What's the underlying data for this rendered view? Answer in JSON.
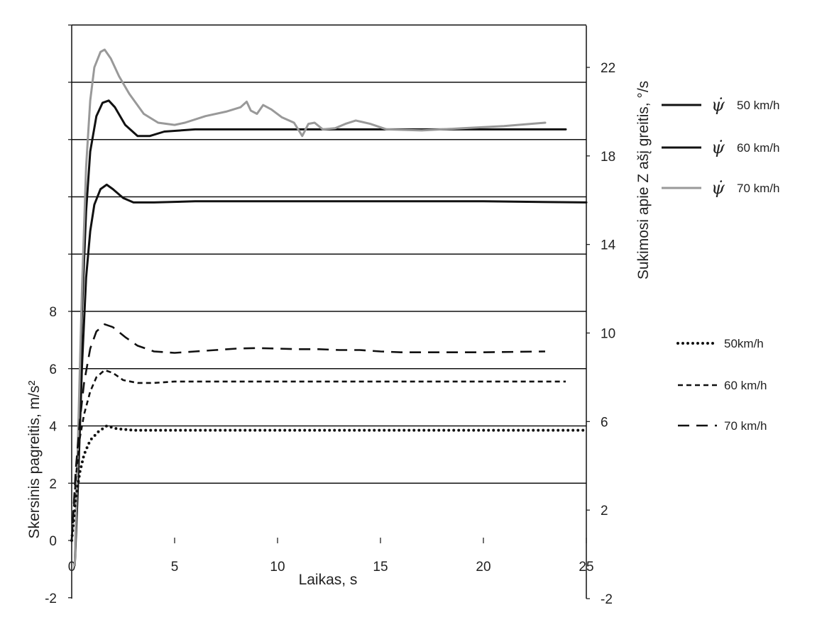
{
  "chart_data": {
    "type": "line",
    "title": "",
    "xlabel": "Laikas, s",
    "ylabel_left": "Skersinis pagreitis, m/s²",
    "ylabel_right": "Sukimosi apie Z ašį greitis, °/s",
    "xlim": [
      0,
      25
    ],
    "ylim_left": [
      -2,
      20
    ],
    "ylim_right": [
      -2,
      24
    ],
    "x_ticks": [
      "0",
      "5",
      "10",
      "15",
      "20",
      "25"
    ],
    "y_left_ticks": [
      "-2",
      "0",
      "2",
      "4",
      "6",
      "8"
    ],
    "y_right_ticks": [
      "-2",
      "2",
      "6",
      "10",
      "14",
      "18",
      "22"
    ],
    "grid": "horizontal",
    "legend_position": "right",
    "yaw_rate_series": [
      {
        "symbol": "ψ̇",
        "name": "50 km/h",
        "axis": "right",
        "color": "#111111",
        "style": "solid",
        "points": [
          [
            0.15,
            -0.5
          ],
          [
            0.3,
            3
          ],
          [
            0.5,
            8.5
          ],
          [
            0.7,
            12.5
          ],
          [
            0.9,
            14.6
          ],
          [
            1.1,
            15.8
          ],
          [
            1.4,
            16.5
          ],
          [
            1.7,
            16.7
          ],
          [
            2.0,
            16.5
          ],
          [
            2.5,
            16.1
          ],
          [
            3.0,
            15.9
          ],
          [
            4,
            15.9
          ],
          [
            6,
            15.95
          ],
          [
            10,
            15.95
          ],
          [
            15,
            15.95
          ],
          [
            20,
            15.95
          ],
          [
            25,
            15.9
          ]
        ]
      },
      {
        "symbol": "ψ̇",
        "name": "60 km/h",
        "axis": "right",
        "color": "#111111",
        "style": "solid",
        "points": [
          [
            0.15,
            -0.5
          ],
          [
            0.3,
            4
          ],
          [
            0.5,
            11
          ],
          [
            0.7,
            15.5
          ],
          [
            0.9,
            18.2
          ],
          [
            1.2,
            19.8
          ],
          [
            1.5,
            20.4
          ],
          [
            1.8,
            20.5
          ],
          [
            2.1,
            20.2
          ],
          [
            2.6,
            19.4
          ],
          [
            3.2,
            18.9
          ],
          [
            3.8,
            18.9
          ],
          [
            4.5,
            19.1
          ],
          [
            6,
            19.2
          ],
          [
            10,
            19.2
          ],
          [
            15,
            19.2
          ],
          [
            20,
            19.2
          ],
          [
            24,
            19.2
          ]
        ]
      },
      {
        "symbol": "ψ̇",
        "name": "70 km/h",
        "axis": "right",
        "color": "#999999",
        "style": "solid",
        "points": [
          [
            0.15,
            -0.5
          ],
          [
            0.3,
            5
          ],
          [
            0.5,
            12
          ],
          [
            0.7,
            17.5
          ],
          [
            0.9,
            20.5
          ],
          [
            1.1,
            22
          ],
          [
            1.4,
            22.7
          ],
          [
            1.6,
            22.8
          ],
          [
            1.9,
            22.4
          ],
          [
            2.3,
            21.6
          ],
          [
            2.8,
            20.8
          ],
          [
            3.5,
            19.9
          ],
          [
            4.2,
            19.5
          ],
          [
            5,
            19.4
          ],
          [
            5.5,
            19.5
          ],
          [
            6.5,
            19.8
          ],
          [
            7.5,
            20.0
          ],
          [
            8.2,
            20.2
          ],
          [
            8.5,
            20.45
          ],
          [
            8.7,
            20.05
          ],
          [
            9.0,
            19.9
          ],
          [
            9.3,
            20.3
          ],
          [
            9.7,
            20.1
          ],
          [
            10.2,
            19.75
          ],
          [
            10.8,
            19.5
          ],
          [
            11.2,
            18.9
          ],
          [
            11.5,
            19.45
          ],
          [
            11.8,
            19.5
          ],
          [
            12.2,
            19.2
          ],
          [
            12.8,
            19.25
          ],
          [
            13.3,
            19.45
          ],
          [
            13.8,
            19.6
          ],
          [
            14.5,
            19.45
          ],
          [
            15.3,
            19.2
          ],
          [
            17,
            19.15
          ],
          [
            19,
            19.25
          ],
          [
            21,
            19.35
          ],
          [
            23,
            19.5
          ]
        ]
      }
    ],
    "lateral_acceleration_series": [
      {
        "name": "50km/h",
        "axis": "left",
        "color": "#111111",
        "style": "dotted",
        "points": [
          [
            0,
            0
          ],
          [
            0.2,
            1.5
          ],
          [
            0.4,
            2.4
          ],
          [
            0.6,
            3.0
          ],
          [
            0.9,
            3.5
          ],
          [
            1.3,
            3.8
          ],
          [
            1.7,
            4.0
          ],
          [
            2.2,
            3.9
          ],
          [
            3,
            3.85
          ],
          [
            5,
            3.85
          ],
          [
            10,
            3.85
          ],
          [
            15,
            3.85
          ],
          [
            20,
            3.85
          ],
          [
            25,
            3.85
          ]
        ]
      },
      {
        "name": "60 km/h",
        "axis": "left",
        "color": "#111111",
        "style": "short-dash",
        "points": [
          [
            0,
            0
          ],
          [
            0.2,
            2.2
          ],
          [
            0.4,
            3.6
          ],
          [
            0.6,
            4.4
          ],
          [
            0.9,
            5.2
          ],
          [
            1.2,
            5.7
          ],
          [
            1.6,
            5.95
          ],
          [
            2.0,
            5.85
          ],
          [
            2.5,
            5.6
          ],
          [
            3.2,
            5.5
          ],
          [
            4,
            5.5
          ],
          [
            5,
            5.55
          ],
          [
            10,
            5.55
          ],
          [
            15,
            5.55
          ],
          [
            20,
            5.55
          ],
          [
            24,
            5.55
          ]
        ]
      },
      {
        "name": "70 km/h",
        "axis": "left",
        "color": "#111111",
        "style": "long-dash",
        "points": [
          [
            0,
            0
          ],
          [
            0.2,
            2.5
          ],
          [
            0.4,
            4.2
          ],
          [
            0.6,
            5.5
          ],
          [
            0.9,
            6.7
          ],
          [
            1.2,
            7.3
          ],
          [
            1.6,
            7.55
          ],
          [
            2.0,
            7.45
          ],
          [
            2.6,
            7.1
          ],
          [
            3.2,
            6.8
          ],
          [
            4.0,
            6.6
          ],
          [
            5,
            6.55
          ],
          [
            6,
            6.6
          ],
          [
            7,
            6.65
          ],
          [
            8,
            6.7
          ],
          [
            9,
            6.72
          ],
          [
            10,
            6.7
          ],
          [
            11,
            6.68
          ],
          [
            12,
            6.68
          ],
          [
            13,
            6.65
          ],
          [
            14,
            6.65
          ],
          [
            15,
            6.6
          ],
          [
            16,
            6.57
          ],
          [
            18,
            6.57
          ],
          [
            20,
            6.57
          ],
          [
            23,
            6.6
          ]
        ]
      }
    ]
  }
}
